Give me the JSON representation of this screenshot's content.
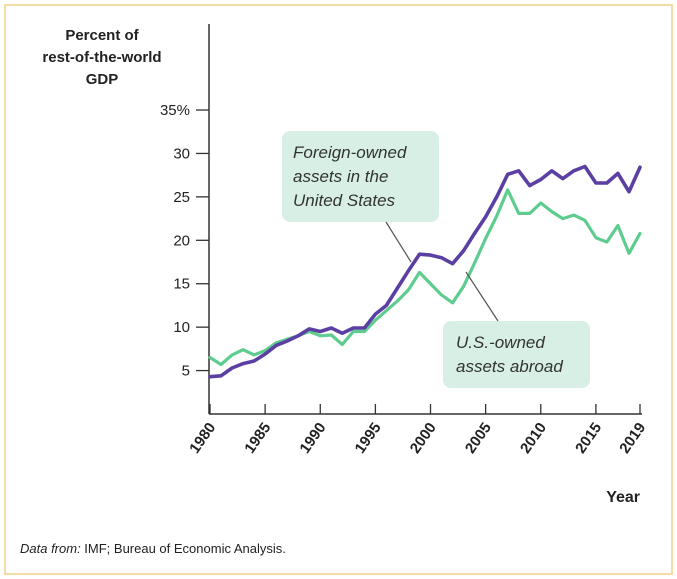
{
  "chart_data": {
    "type": "line",
    "ylabel_lines": [
      "Percent of",
      "rest-of-the-world",
      "GDP"
    ],
    "xlabel": "Year",
    "ylim": [
      0,
      35
    ],
    "xlim": [
      1980,
      2019
    ],
    "y_ticks": [
      {
        "value": 35,
        "label": "35%"
      },
      {
        "value": 30,
        "label": "30"
      },
      {
        "value": 25,
        "label": "25"
      },
      {
        "value": 20,
        "label": "20"
      },
      {
        "value": 15,
        "label": "15"
      },
      {
        "value": 10,
        "label": "10"
      },
      {
        "value": 5,
        "label": "5"
      }
    ],
    "x_ticks": [
      1980,
      1985,
      1990,
      1995,
      2000,
      2005,
      2010,
      2015,
      2019
    ],
    "series": [
      {
        "name": "Foreign-owned assets in the United States",
        "color": "#5b3fa3",
        "x": [
          1980,
          1981,
          1982,
          1983,
          1984,
          1985,
          1986,
          1987,
          1988,
          1989,
          1990,
          1991,
          1992,
          1993,
          1994,
          1995,
          1996,
          1997,
          1998,
          1999,
          2000,
          2001,
          2002,
          2003,
          2004,
          2005,
          2006,
          2007,
          2008,
          2009,
          2010,
          2011,
          2012,
          2013,
          2014,
          2015,
          2016,
          2017,
          2018,
          2019
        ],
        "y": [
          4.3,
          4.4,
          5.3,
          5.8,
          6.1,
          6.9,
          7.9,
          8.4,
          9.0,
          9.8,
          9.5,
          9.9,
          9.3,
          9.9,
          9.9,
          11.5,
          12.5,
          14.5,
          16.5,
          18.4,
          18.3,
          18.0,
          17.3,
          18.8,
          20.8,
          22.7,
          25.0,
          27.6,
          28.0,
          26.3,
          27.0,
          28.0,
          27.1,
          28.0,
          28.5,
          26.6,
          26.6,
          27.7,
          25.6,
          28.4
        ]
      },
      {
        "name": "U.S.-owned assets abroad",
        "color": "#5fcc8f",
        "x": [
          1980,
          1981,
          1982,
          1983,
          1984,
          1985,
          1986,
          1987,
          1988,
          1989,
          1990,
          1991,
          1992,
          1993,
          1994,
          1995,
          1996,
          1997,
          1998,
          1999,
          2000,
          2001,
          2002,
          2003,
          2004,
          2005,
          2006,
          2007,
          2008,
          2009,
          2010,
          2011,
          2012,
          2013,
          2014,
          2015,
          2016,
          2017,
          2018,
          2019
        ],
        "y": [
          6.5,
          5.7,
          6.8,
          7.4,
          6.8,
          7.3,
          8.2,
          8.6,
          9.0,
          9.5,
          9.0,
          9.1,
          8.0,
          9.5,
          9.5,
          10.8,
          11.9,
          13.0,
          14.3,
          16.3,
          15.0,
          13.7,
          12.8,
          14.7,
          17.4,
          20.2,
          22.8,
          25.8,
          23.1,
          23.1,
          24.3,
          23.3,
          22.5,
          22.9,
          22.3,
          20.3,
          19.8,
          21.7,
          18.5,
          20.8
        ]
      }
    ],
    "annotations": [
      {
        "lines": [
          "Foreign-owned",
          "assets in the",
          "United States"
        ]
      },
      {
        "lines": [
          "U.S.-owned",
          "assets abroad"
        ]
      }
    ],
    "source": {
      "prefix": "Data from:",
      "text": " IMF; Bureau of Economic Analysis."
    }
  },
  "colors": {
    "frame": "#f3dca7",
    "callout_bg": "#d7efe4",
    "foreign": "#5b3fa3",
    "us": "#5fcc8f"
  }
}
